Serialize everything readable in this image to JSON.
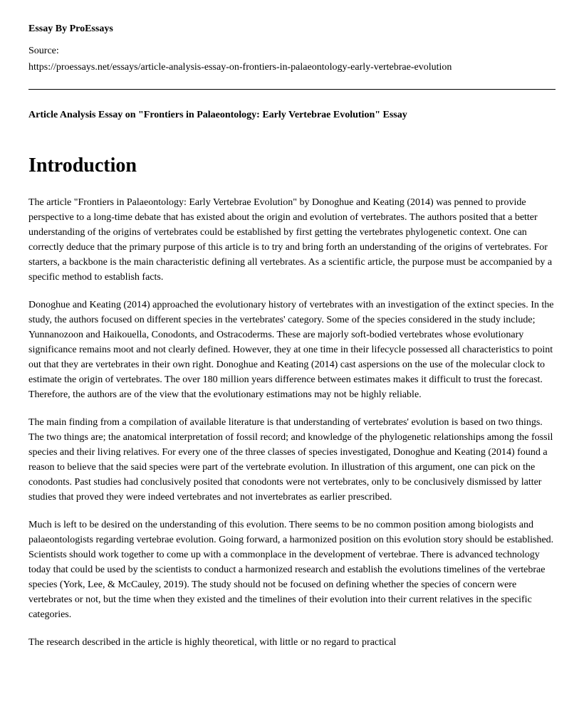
{
  "byline": "Essay By ProEssays",
  "source": {
    "label": "Source:",
    "url": "https://proessays.net/essays/article-analysis-essay-on-frontiers-in-palaeontology-early-vertebrae-evolution"
  },
  "article_title": "Article Analysis Essay on \"Frontiers in Palaeontology: Early Vertebrae Evolution\" Essay",
  "heading": "Introduction",
  "paragraphs": [
    "The article \"Frontiers in Palaeontology: Early Vertebrae Evolution\" by Donoghue and Keating (2014) was penned to provide perspective to a long-time debate that has existed about the origin and evolution of vertebrates. The authors posited that a better understanding of the origins of vertebrates could be established by first getting the vertebrates phylogenetic context. One can correctly deduce that the primary purpose of this article is to try and bring forth an understanding of the origins of vertebrates. For starters, a backbone is the main characteristic defining all vertebrates. As a scientific article, the purpose must be accompanied by a specific method to establish facts.",
    "Donoghue and Keating (2014) approached the evolutionary history of vertebrates with an investigation of the extinct species. In the study, the authors focused on different species in the vertebrates' category. Some of the species considered in the study include; Yunnanozoon and Haikouella, Conodonts, and Ostracoderms. These are majorly soft-bodied vertebrates whose evolutionary significance remains moot and not clearly defined. However, they at one time in their lifecycle possessed all characteristics to point out that they are vertebrates in their own right. Donoghue and Keating (2014) cast aspersions on the use of the molecular clock to estimate the origin of vertebrates. The over 180 million years difference between estimates makes it difficult to trust the forecast. Therefore, the authors are of the view that the evolutionary estimations may not be highly reliable.",
    "The main finding from a compilation of available literature is that understanding of vertebrates' evolution is based on two things. The two things are; the anatomical interpretation of fossil record; and knowledge of the phylogenetic relationships among the fossil species and their living relatives. For every one of the three classes of species investigated, Donoghue and Keating (2014) found a reason to believe that the said species were part of the vertebrate evolution. In illustration of this argument, one can pick on the conodonts. Past studies had conclusively posited that conodonts were not vertebrates, only to be conclusively dismissed by latter studies that proved they were indeed vertebrates and not invertebrates as earlier prescribed.",
    "Much is left to be desired on the understanding of this evolution. There seems to be no common position among biologists and palaeontologists regarding vertebrae evolution. Going forward, a harmonized position on this evolution story should be established. Scientists should work together to come up with a commonplace in the development of vertebrae. There is advanced technology today that could be used by the scientists to conduct a harmonized research and establish the evolutions timelines of the vertebrae species (York, Lee, & McCauley, 2019). The study should not be focused on defining whether the species of concern were vertebrates or not, but the time when they existed and the timelines of their evolution into their current relatives in the specific categories.",
    "The research described in the article is highly theoretical, with little or no regard to practical"
  ]
}
